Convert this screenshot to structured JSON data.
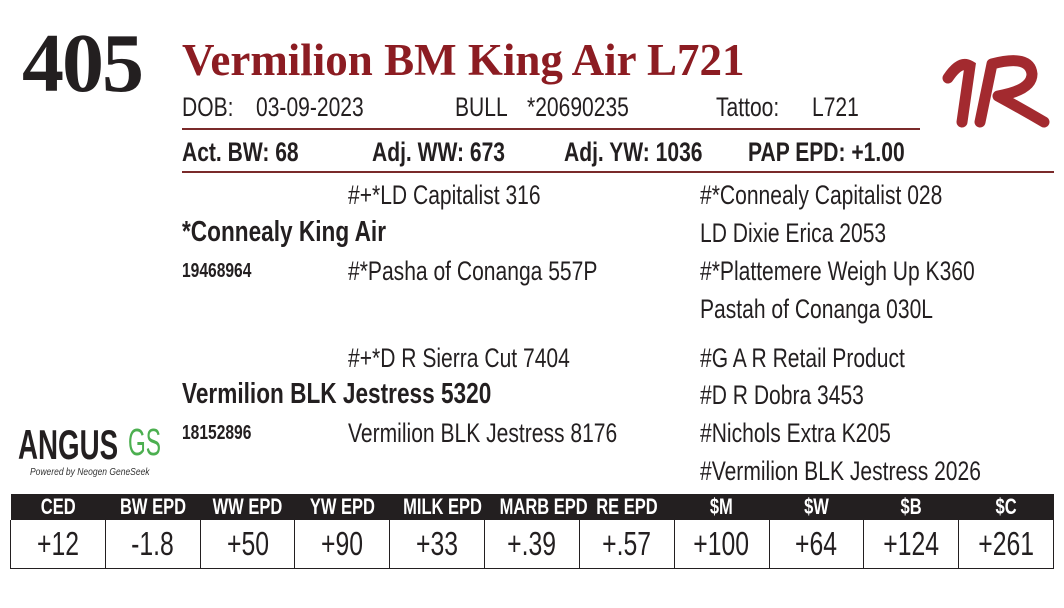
{
  "lot_number": "405",
  "animal_name": "Vermilion BM King Air L721",
  "info": {
    "dob_label": "DOB:",
    "dob": "03-09-2023",
    "sex": "BULL",
    "registration": "*20690235",
    "tattoo_label": "Tattoo:",
    "tattoo": "L721"
  },
  "performance": {
    "act_bw": "Act. BW: 68",
    "adj_ww": "Adj. WW: 673",
    "adj_yw": "Adj. YW: 1036",
    "pap_epd": "PAP EPD: +1.00"
  },
  "pedigree": {
    "sire": {
      "name": "*Connealy King Air",
      "reg": "19468964",
      "sire": "#+*LD Capitalist 316",
      "dam": "#*Pasha of Conanga 557P",
      "ss": "#*Connealy Capitalist 028",
      "sd": "LD Dixie Erica 2053",
      "ds": "#*Plattemere Weigh Up K360",
      "dd": "Pastah of Conanga 030L"
    },
    "dam": {
      "name": "Vermilion BLK Jestress 5320",
      "reg": "18152896",
      "sire": "#+*D R Sierra Cut 7404",
      "dam": "Vermilion BLK Jestress 8176",
      "ss": "#G A R Retail Product",
      "sd": "#D R Dobra 3453",
      "ds": "#Nichols Extra K205",
      "dd": "#Vermilion BLK Jestress 2026"
    }
  },
  "logo": {
    "brand": "ANGUS",
    "suffix": "GS",
    "tagline": "Powered by Neogen GeneSeek",
    "brand_mark": "VR"
  },
  "epds": {
    "headers": [
      "CED",
      "BW EPD",
      "WW EPD",
      "YW EPD",
      "MILK EPD",
      "MARB EPD",
      "RE EPD",
      "$M",
      "$W",
      "$B",
      "$C"
    ],
    "values": [
      "+12",
      "-1.8",
      "+50",
      "+90",
      "+33",
      "+.39",
      "+.57",
      "+100",
      "+64",
      "+124",
      "+261"
    ]
  },
  "colors": {
    "title": "#8c1c22",
    "rule": "#7a2a2a",
    "gs_green": "#4caf50"
  }
}
